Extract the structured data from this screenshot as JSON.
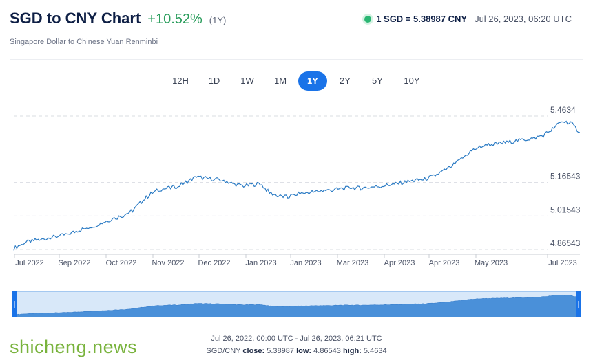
{
  "header": {
    "title": "SGD to CNY Chart",
    "change": "+10.52%",
    "period": "(1Y)",
    "subtitle": "Singapore Dollar to Chinese Yuan Renminbi"
  },
  "quote": {
    "rate": "1 SGD = 5.38987 CNY",
    "timestamp": "Jul 26, 2023, 06:20 UTC"
  },
  "tabs": [
    "12H",
    "1D",
    "1W",
    "1M",
    "1Y",
    "2Y",
    "5Y",
    "10Y"
  ],
  "active_tab": "1Y",
  "footer": {
    "range": "Jul 26, 2022, 00:00 UTC - Jul 26, 2023, 06:21 UTC",
    "pair_label": "SGD/CNY",
    "close_label": "close:",
    "close_value": "5.38987",
    "low_label": "low:",
    "low_value": "4.86543",
    "high_label": "high:",
    "high_value": "5.4634"
  },
  "watermark": "shicheng.news",
  "colors": {
    "line": "#2b7bc4",
    "navigator_fill": "#4a90d9",
    "active_tab": "#1a73e8",
    "positive": "#2a9d5c"
  },
  "chart_data": {
    "type": "line",
    "title": "SGD to CNY Chart",
    "xlabel": "",
    "ylabel": "",
    "y_ticks": [
      "5.4634",
      "5.16543",
      "5.01543",
      "4.86543"
    ],
    "y_tick_values": [
      5.4634,
      5.16543,
      5.01543,
      4.86543
    ],
    "x_ticks": [
      "Jul 2022",
      "Sep 2022",
      "Oct 2022",
      "Nov 2022",
      "Dec 2022",
      "Jan 2023",
      "Jan 2023",
      "Mar 2023",
      "Apr 2023",
      "Apr 2023",
      "May 2023",
      "Jul 2023"
    ],
    "ylim": [
      4.86543,
      5.4634
    ],
    "grid": true,
    "series": [
      {
        "values": [
          4.87,
          4.893,
          4.905,
          4.91,
          4.918,
          4.925,
          4.935,
          4.95,
          4.962,
          4.975,
          4.99,
          5.005,
          5.018,
          5.04,
          5.08,
          5.115,
          5.135,
          5.14,
          5.15,
          5.17,
          5.19,
          5.185,
          5.18,
          5.175,
          5.16,
          5.15,
          5.155,
          5.16,
          5.12,
          5.105,
          5.1,
          5.115,
          5.12,
          5.125,
          5.13,
          5.132,
          5.138,
          5.142,
          5.14,
          5.145,
          5.148,
          5.155,
          5.16,
          5.168,
          5.175,
          5.18,
          5.195,
          5.215,
          5.24,
          5.27,
          5.305,
          5.325,
          5.335,
          5.34,
          5.345,
          5.352,
          5.358,
          5.365,
          5.378,
          5.405,
          5.44,
          5.432,
          5.39
        ]
      }
    ]
  }
}
